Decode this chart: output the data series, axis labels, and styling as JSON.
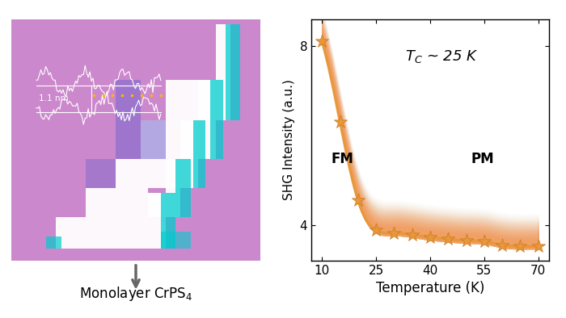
{
  "temperature": [
    10,
    15,
    20,
    25,
    30,
    35,
    40,
    45,
    50,
    55,
    60,
    65,
    70
  ],
  "shg_intensity": [
    8.1,
    6.3,
    4.55,
    3.88,
    3.82,
    3.78,
    3.72,
    3.68,
    3.65,
    3.63,
    3.55,
    3.52,
    3.52
  ],
  "star_color": "#E8973A",
  "star_edge_color": "#C87820",
  "line_color": "#E8973A",
  "shaded_color_left": "#F0A060",
  "shaded_color_right": "#FDDCBB",
  "xlabel": "Temperature (K)",
  "ylabel": "SHG Intensity (a.u.)",
  "xticks": [
    10,
    25,
    40,
    55,
    70
  ],
  "yticks": [
    4,
    8
  ],
  "xlim": [
    7,
    73
  ],
  "ylim": [
    3.2,
    8.6
  ],
  "tc_text": "$T$$_C$ ~ 25 K",
  "fm_text": "FM",
  "pm_text": "PM",
  "image_label": "Monolayer CrPS$_4$",
  "image_bg_color": "#CC88CC",
  "arrow_color": "#666666",
  "marker_size": 10,
  "line_width": 2.5
}
